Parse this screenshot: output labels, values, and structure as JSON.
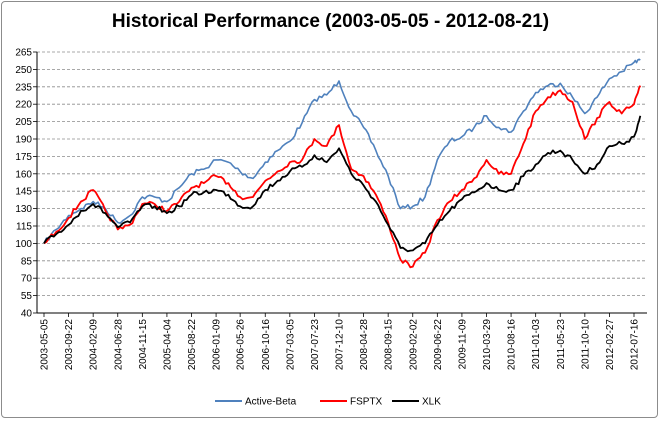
{
  "chart_data": {
    "type": "line",
    "title": "Historical Performance (2003-05-05 - 2012-08-21)",
    "xlabel": "",
    "ylabel": "",
    "ylim": [
      40,
      265
    ],
    "yticks": [
      40,
      55,
      70,
      85,
      100,
      115,
      130,
      145,
      160,
      175,
      190,
      205,
      220,
      235,
      250,
      265
    ],
    "grid": true,
    "legend_position": "bottom",
    "x_tick_labels": [
      "2003-05-05",
      "2003-09-22",
      "2004-02-09",
      "2004-06-28",
      "2004-11-15",
      "2005-04-04",
      "2005-08-22",
      "2006-01-09",
      "2006-05-26",
      "2006-10-16",
      "2007-03-05",
      "2007-07-23",
      "2007-12-10",
      "2008-04-28",
      "2008-09-15",
      "2009-02-02",
      "2009-06-22",
      "2009-11-09",
      "2010-03-29",
      "2010-08-16",
      "2011-01-03",
      "2011-05-23",
      "2011-10-10",
      "2012-02-27",
      "2012-07-16"
    ],
    "x": [
      "2003-05-05",
      "2003-07-14",
      "2003-09-22",
      "2003-12-01",
      "2004-02-09",
      "2004-04-19",
      "2004-06-28",
      "2004-09-06",
      "2004-11-15",
      "2005-01-24",
      "2005-04-04",
      "2005-06-13",
      "2005-08-22",
      "2005-10-31",
      "2006-01-09",
      "2006-03-20",
      "2006-05-26",
      "2006-08-07",
      "2006-10-16",
      "2006-12-25",
      "2007-03-05",
      "2007-05-14",
      "2007-07-23",
      "2007-10-01",
      "2007-12-10",
      "2008-02-18",
      "2008-04-28",
      "2008-07-07",
      "2008-09-15",
      "2008-11-24",
      "2009-02-02",
      "2009-04-13",
      "2009-06-22",
      "2009-08-31",
      "2009-11-09",
      "2010-01-18",
      "2010-03-29",
      "2010-06-07",
      "2010-08-16",
      "2010-10-25",
      "2011-01-03",
      "2011-03-14",
      "2011-05-23",
      "2011-08-01",
      "2011-10-10",
      "2011-12-19",
      "2012-02-27",
      "2012-05-07",
      "2012-07-16",
      "2012-08-21"
    ],
    "series": [
      {
        "name": "Active-Beta",
        "color": "#4f81bd",
        "values": [
          100,
          112,
          124,
          130,
          136,
          130,
          118,
          124,
          140,
          140,
          136,
          148,
          160,
          164,
          172,
          170,
          162,
          156,
          170,
          180,
          188,
          204,
          224,
          228,
          240,
          214,
          200,
          180,
          158,
          130,
          132,
          140,
          172,
          188,
          192,
          200,
          210,
          200,
          196,
          214,
          230,
          236,
          238,
          226,
          212,
          226,
          242,
          248,
          256,
          258
        ]
      },
      {
        "name": "FSPTX",
        "color": "#ff0000",
        "values": [
          100,
          110,
          122,
          136,
          146,
          128,
          112,
          116,
          134,
          134,
          128,
          136,
          148,
          152,
          158,
          152,
          140,
          140,
          154,
          162,
          170,
          172,
          190,
          184,
          202,
          164,
          158,
          142,
          118,
          86,
          80,
          92,
          120,
          136,
          146,
          156,
          172,
          160,
          160,
          186,
          214,
          226,
          232,
          222,
          190,
          208,
          222,
          212,
          220,
          236
        ]
      },
      {
        "name": "XLK",
        "color": "#000000",
        "values": [
          100,
          108,
          116,
          128,
          134,
          126,
          114,
          118,
          132,
          132,
          126,
          132,
          142,
          144,
          146,
          142,
          132,
          132,
          146,
          154,
          162,
          166,
          176,
          170,
          182,
          160,
          150,
          136,
          116,
          96,
          94,
          100,
          116,
          128,
          138,
          144,
          152,
          146,
          146,
          158,
          168,
          178,
          180,
          172,
          160,
          168,
          184,
          186,
          192,
          210
        ]
      }
    ]
  }
}
